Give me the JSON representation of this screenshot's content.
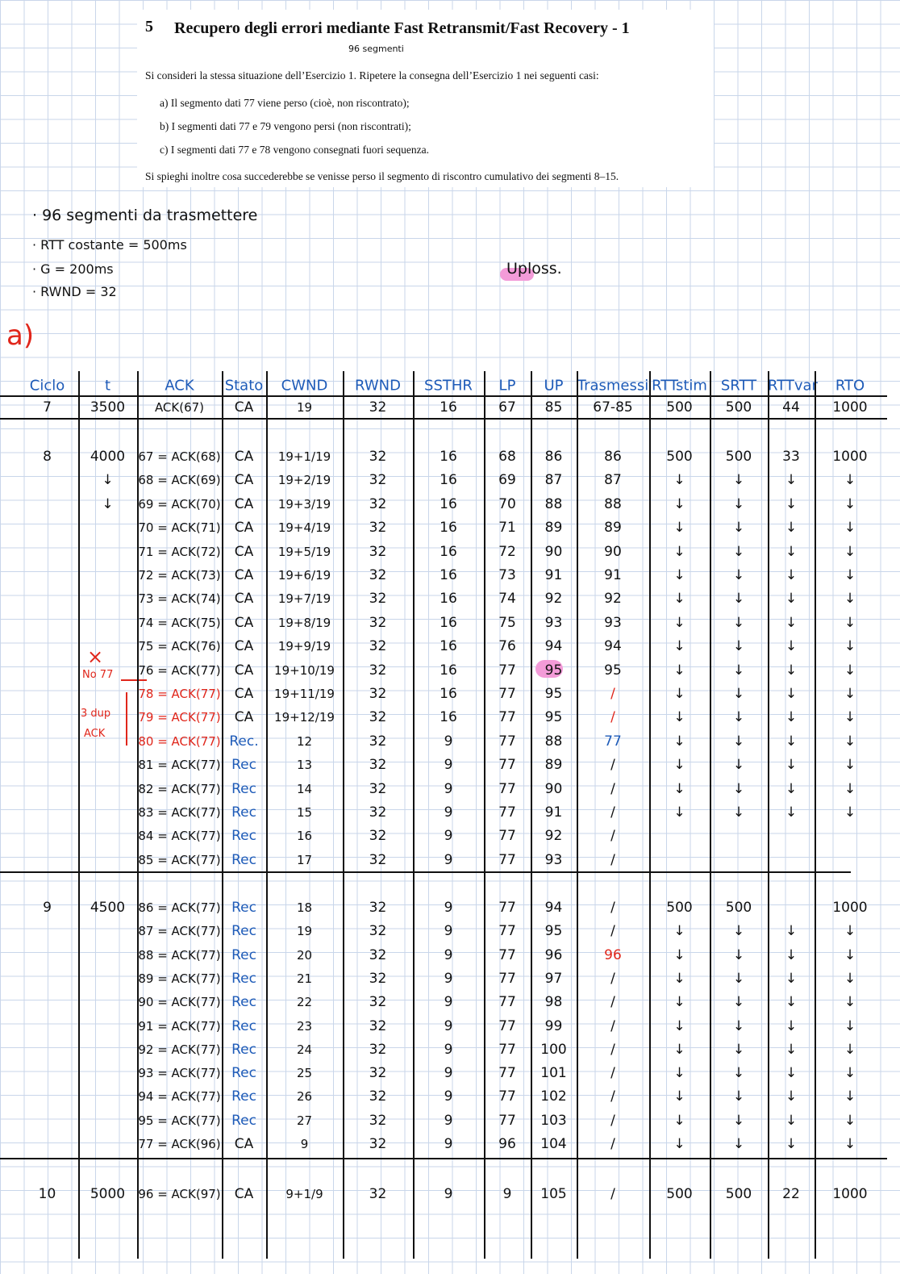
{
  "exercise": {
    "number": "5",
    "title": "Recupero degli errori mediante Fast Retransmit/Fast Recovery - 1",
    "annotation": "96 segmenti",
    "intro": "Si consideri la stessa situazione dell’Esercizio 1. Ripetere la consegna dell’Esercizio 1 nei seguenti casi:",
    "items": [
      "a)  Il segmento dati 77 viene perso (cioè, non riscontrato);",
      "b)  I segmenti dati 77 e 79 vengono persi (non riscontrati);",
      "c)  I segmenti dati 77 e 78 vengono consegnati fuori sequenza."
    ],
    "closing": "Si spieghi inoltre cosa succederebbe se venisse perso il segmento di riscontro cumulativo dei segmenti 8–15."
  },
  "notes": [
    "· 96 segmenti da trasmettere",
    "· RTT costante = 500ms",
    "· G = 200ms",
    "· RWND = 32"
  ],
  "uploss": "Uploss.",
  "part": "a)",
  "side_notes": {
    "cross": "×",
    "lost": "No 77",
    "dup": "3 dup",
    "ack": "ACK"
  },
  "table": {
    "headers": [
      "Ciclo",
      "t",
      "ACK",
      "Stato",
      "CWND",
      "RWND",
      "SSTHR",
      "LP",
      "UP",
      "Trasmessi",
      "RTTstim",
      "SRTT",
      "RTTvar",
      "RTO"
    ],
    "rows": [
      [
        "7",
        "3500",
        "ACK(67)",
        "CA",
        "19",
        "32",
        "16",
        "67",
        "85",
        "67-85",
        "500",
        "500",
        "44",
        "1000"
      ],
      [
        "8",
        "4000",
        "67 = ACK(68)",
        "CA",
        "19+1/19",
        "32",
        "16",
        "68",
        "86",
        "86",
        "500",
        "500",
        "33",
        "1000"
      ],
      [
        null,
        "↓",
        "68 = ACK(69)",
        "CA",
        "19+2/19",
        "32",
        "16",
        "69",
        "87",
        "87",
        "↓",
        "↓",
        "↓",
        "↓"
      ],
      [
        null,
        "↓",
        "69 = ACK(70)",
        "CA",
        "19+3/19",
        "32",
        "16",
        "70",
        "88",
        "88",
        "↓",
        "↓",
        "↓",
        "↓"
      ],
      [
        null,
        null,
        "70 = ACK(71)",
        "CA",
        "19+4/19",
        "32",
        "16",
        "71",
        "89",
        "89",
        "↓",
        "↓",
        "↓",
        "↓"
      ],
      [
        null,
        null,
        "71 = ACK(72)",
        "CA",
        "19+5/19",
        "32",
        "16",
        "72",
        "90",
        "90",
        "↓",
        "↓",
        "↓",
        "↓"
      ],
      [
        null,
        null,
        "72 = ACK(73)",
        "CA",
        "19+6/19",
        "32",
        "16",
        "73",
        "91",
        "91",
        "↓",
        "↓",
        "↓",
        "↓"
      ],
      [
        null,
        null,
        "73 = ACK(74)",
        "CA",
        "19+7/19",
        "32",
        "16",
        "74",
        "92",
        "92",
        "↓",
        "↓",
        "↓",
        "↓"
      ],
      [
        null,
        null,
        "74 = ACK(75)",
        "CA",
        "19+8/19",
        "32",
        "16",
        "75",
        "93",
        "93",
        "↓",
        "↓",
        "↓",
        "↓"
      ],
      [
        null,
        null,
        "75 = ACK(76)",
        "CA",
        "19+9/19",
        "32",
        "16",
        "76",
        "94",
        "94",
        "↓",
        "↓",
        "↓",
        "↓"
      ],
      [
        null,
        null,
        "76 = ACK(77)",
        "CA",
        "19+10/19",
        "32",
        "16",
        "77",
        "95",
        "95",
        "↓",
        "↓",
        "↓",
        "↓"
      ],
      [
        null,
        null,
        "78 = ACK(77)",
        "CA",
        "19+11/19",
        "32",
        "16",
        "77",
        "95",
        "/",
        "↓",
        "↓",
        "↓",
        "↓"
      ],
      [
        null,
        null,
        "79 = ACK(77)",
        "CA",
        "19+12/19",
        "32",
        "16",
        "77",
        "95",
        "/",
        "↓",
        "↓",
        "↓",
        "↓"
      ],
      [
        null,
        null,
        "80 = ACK(77)",
        "Rec.",
        "12",
        "32",
        "9",
        "77",
        "88",
        "77",
        "↓",
        "↓",
        "↓",
        "↓"
      ],
      [
        null,
        null,
        "81 = ACK(77)",
        "Rec",
        "13",
        "32",
        "9",
        "77",
        "89",
        "/",
        "↓",
        "↓",
        "↓",
        "↓"
      ],
      [
        null,
        null,
        "82 = ACK(77)",
        "Rec",
        "14",
        "32",
        "9",
        "77",
        "90",
        "/",
        "↓",
        "↓",
        "↓",
        "↓"
      ],
      [
        null,
        null,
        "83 = ACK(77)",
        "Rec",
        "15",
        "32",
        "9",
        "77",
        "91",
        "/",
        "↓",
        "↓",
        "↓",
        "↓"
      ],
      [
        null,
        null,
        "84 = ACK(77)",
        "Rec",
        "16",
        "32",
        "9",
        "77",
        "92",
        "/",
        null,
        null,
        null,
        null
      ],
      [
        null,
        null,
        "85 = ACK(77)",
        "Rec",
        "17",
        "32",
        "9",
        "77",
        "93",
        "/",
        null,
        null,
        null,
        null
      ],
      [
        "9",
        "4500",
        "86 = ACK(77)",
        "Rec",
        "18",
        "32",
        "9",
        "77",
        "94",
        "/",
        "500",
        "500",
        null,
        "1000"
      ],
      [
        null,
        null,
        "87 = ACK(77)",
        "Rec",
        "19",
        "32",
        "9",
        "77",
        "95",
        "/",
        "↓",
        "↓",
        "↓",
        "↓"
      ],
      [
        null,
        null,
        "88 = ACK(77)",
        "Rec",
        "20",
        "32",
        "9",
        "77",
        "96",
        "96",
        "↓",
        "↓",
        "↓",
        "↓"
      ],
      [
        null,
        null,
        "89 = ACK(77)",
        "Rec",
        "21",
        "32",
        "9",
        "77",
        "97",
        "/",
        "↓",
        "↓",
        "↓",
        "↓"
      ],
      [
        null,
        null,
        "90 = ACK(77)",
        "Rec",
        "22",
        "32",
        "9",
        "77",
        "98",
        "/",
        "↓",
        "↓",
        "↓",
        "↓"
      ],
      [
        null,
        null,
        "91 = ACK(77)",
        "Rec",
        "23",
        "32",
        "9",
        "77",
        "99",
        "/",
        "↓",
        "↓",
        "↓",
        "↓"
      ],
      [
        null,
        null,
        "92 = ACK(77)",
        "Rec",
        "24",
        "32",
        "9",
        "77",
        "100",
        "/",
        "↓",
        "↓",
        "↓",
        "↓"
      ],
      [
        null,
        null,
        "93 = ACK(77)",
        "Rec",
        "25",
        "32",
        "9",
        "77",
        "101",
        "/",
        "↓",
        "↓",
        "↓",
        "↓"
      ],
      [
        null,
        null,
        "94 = ACK(77)",
        "Rec",
        "26",
        "32",
        "9",
        "77",
        "102",
        "/",
        "↓",
        "↓",
        "↓",
        "↓"
      ],
      [
        null,
        null,
        "95 = ACK(77)",
        "Rec",
        "27",
        "32",
        "9",
        "77",
        "103",
        "/",
        "↓",
        "↓",
        "↓",
        "↓"
      ],
      [
        null,
        null,
        "77 = ACK(96)",
        "CA",
        "9",
        "32",
        "9",
        "96",
        "104",
        "/",
        "↓",
        "↓",
        "↓",
        "↓"
      ],
      [
        "10",
        "5000",
        "96 = ACK(97)",
        "CA",
        "9+1/9",
        "32",
        "9",
        "9",
        "105",
        "/",
        "500",
        "500",
        "22",
        "1000"
      ]
    ]
  }
}
